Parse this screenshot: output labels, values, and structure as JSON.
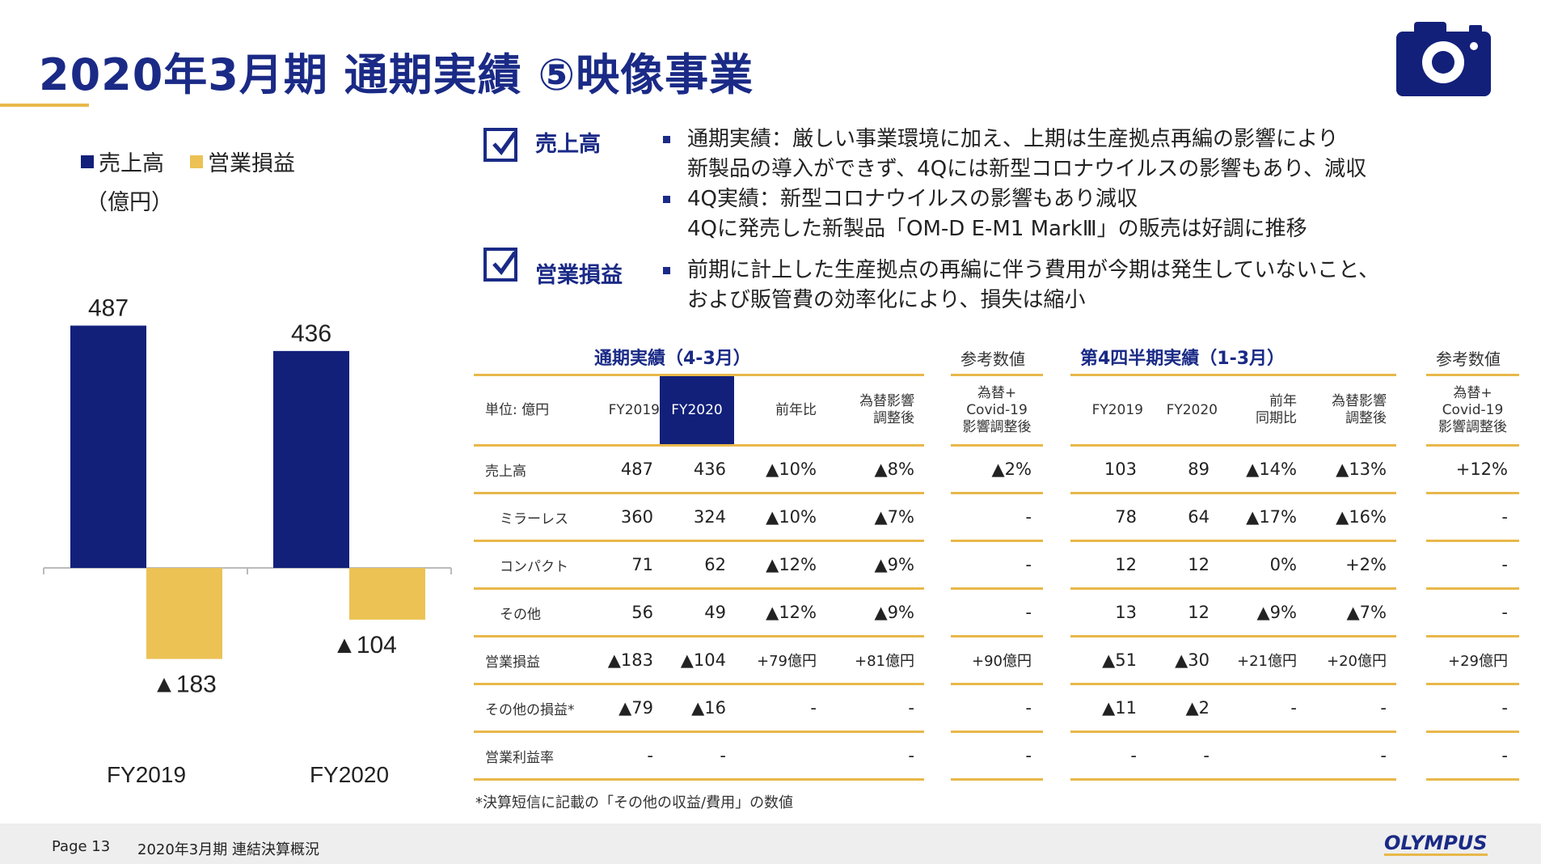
{
  "title": "2020年3月期 通期実績 ⑤映像事業",
  "icon": "camera-icon",
  "colors": {
    "navy": "#12207a",
    "gold": "#ecc255",
    "accent": "#e8b84a"
  },
  "chart": {
    "legend": [
      "売上高",
      "営業損益"
    ],
    "unit": "（億円）"
  },
  "chart_data": {
    "type": "bar",
    "categories": [
      "FY2019",
      "FY2020"
    ],
    "series": [
      {
        "name": "売上高",
        "values": [
          487,
          436
        ],
        "labels": [
          "487",
          "436"
        ]
      },
      {
        "name": "営業損益",
        "values": [
          -183,
          -104
        ],
        "labels": [
          "▲183",
          "▲104"
        ]
      }
    ]
  },
  "sections": [
    {
      "label": "売上高",
      "bullets": [
        [
          "通期実績：厳しい事業環境に加え、上期は生産拠点再編の影響により",
          "新製品の導入ができず、4Qには新型コロナウイルスの影響もあり、減収"
        ],
        [
          "4Q実績：新型コロナウイルスの影響もあり減収",
          "4Qに発売した新製品「OM-D E-M1 MarkⅢ」の販売は好調に推移"
        ]
      ]
    },
    {
      "label": "営業損益",
      "bullets": [
        [
          "前期に計上した生産拠点の再編に伴う費用が今期は発生していないこと、",
          "および販管費の効率化により、損失は縮小"
        ]
      ]
    }
  ],
  "table": {
    "full_year_title": "通期実績（4-3月）",
    "q4_title": "第4四半期実績（1-3月）",
    "ref_title": "参考数値",
    "unit_label": "単位: 億円",
    "full_cols": [
      "FY2019",
      "FY2020",
      "前年比",
      "為替影響\n調整後"
    ],
    "ref_col": "為替+\nCovid-19\n影響調整後",
    "q4_cols": [
      "FY2019",
      "FY2020",
      "前年\n同期比",
      "為替影響\n調整後"
    ],
    "rows": [
      {
        "label": "売上高",
        "sub": false,
        "full": [
          "487",
          "436",
          "▲10%",
          "▲8%"
        ],
        "ref1": "▲2%",
        "q4": [
          "103",
          "89",
          "▲14%",
          "▲13%"
        ],
        "ref2": "+12%"
      },
      {
        "label": "ミラーレス",
        "sub": true,
        "full": [
          "360",
          "324",
          "▲10%",
          "▲7%"
        ],
        "ref1": "-",
        "q4": [
          "78",
          "64",
          "▲17%",
          "▲16%"
        ],
        "ref2": "-"
      },
      {
        "label": "コンパクト",
        "sub": true,
        "full": [
          "71",
          "62",
          "▲12%",
          "▲9%"
        ],
        "ref1": "-",
        "q4": [
          "12",
          "12",
          "0%",
          "+2%"
        ],
        "ref2": "-"
      },
      {
        "label": "その他",
        "sub": true,
        "full": [
          "56",
          "49",
          "▲12%",
          "▲9%"
        ],
        "ref1": "-",
        "q4": [
          "13",
          "12",
          "▲9%",
          "▲7%"
        ],
        "ref2": "-"
      },
      {
        "label": "営業損益",
        "sub": false,
        "full": [
          "▲183",
          "▲104",
          "+79億円",
          "+81億円"
        ],
        "ref1": "+90億円",
        "q4": [
          "▲51",
          "▲30",
          "+21億円",
          "+20億円"
        ],
        "ref2": "+29億円"
      },
      {
        "label": "その他の損益*",
        "sub": false,
        "full": [
          "▲79",
          "▲16",
          "-",
          "-"
        ],
        "ref1": "-",
        "q4": [
          "▲11",
          "▲2",
          "-",
          "-"
        ],
        "ref2": "-"
      },
      {
        "label": "営業利益率",
        "sub": false,
        "full": [
          "-",
          "-",
          "",
          "-"
        ],
        "ref1": "-",
        "q4": [
          "-",
          "-",
          "",
          "-"
        ],
        "ref2": "-"
      }
    ],
    "note": "*決算短信に記載の「その他の収益/費用」の数値"
  },
  "footer": {
    "page": "Page 13",
    "title": "2020年3月期 連結決算概況",
    "brand": "OLYMPUS"
  }
}
